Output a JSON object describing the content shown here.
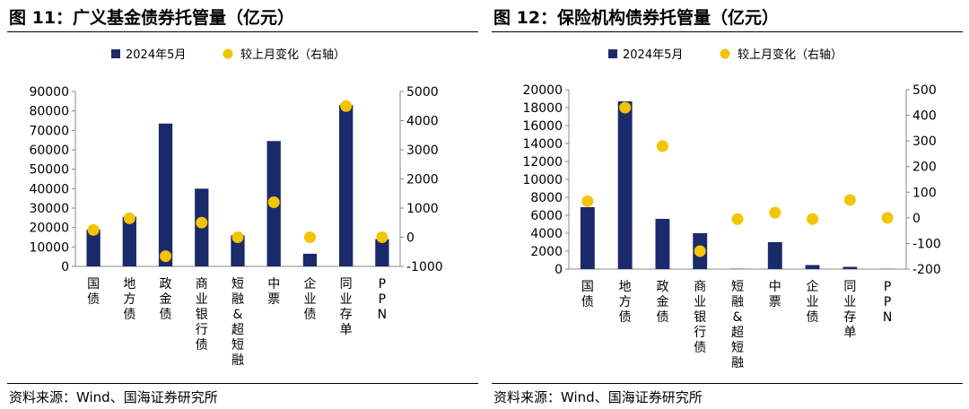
{
  "charts": [
    {
      "title": "图 11：广义基金债券托管量（亿元）",
      "source": "资料来源：Wind、国海证券研究所",
      "chart_data": {
        "type": "bar",
        "categories": [
          "国债",
          "地方债",
          "政金债",
          "商业银行债",
          "短融&超短融",
          "中票",
          "企业债",
          "同业存单",
          "PPN"
        ],
        "series": [
          {
            "name": "2024年5月",
            "type": "bar",
            "axis": "left",
            "color": "#1b2a6b",
            "values": [
              19000,
              25500,
              73500,
              40000,
              16000,
              64500,
              6500,
              83000,
              14000
            ]
          },
          {
            "name": "较上月变化（右轴）",
            "type": "scatter",
            "axis": "right",
            "color": "#f5c400",
            "values": [
              250,
              650,
              -650,
              500,
              0,
              1200,
              0,
              4500,
              0
            ]
          }
        ],
        "ylim_left": [
          0,
          90000
        ],
        "yticks_left": [
          0,
          10000,
          20000,
          30000,
          40000,
          50000,
          60000,
          70000,
          80000,
          90000
        ],
        "ylim_right": [
          -1000,
          5000
        ],
        "yticks_right": [
          -1000,
          0,
          1000,
          2000,
          3000,
          4000,
          5000
        ],
        "legend_position": "top",
        "grid": false
      }
    },
    {
      "title": "图 12：保险机构债券托管量（亿元）",
      "source": "资料来源：Wind、国海证券研究所",
      "chart_data": {
        "type": "bar",
        "categories": [
          "国债",
          "地方债",
          "政金债",
          "商业银行债",
          "短融&超短融",
          "中票",
          "企业债",
          "同业存单",
          "PPN"
        ],
        "series": [
          {
            "name": "2024年5月",
            "type": "bar",
            "axis": "left",
            "color": "#1b2a6b",
            "values": [
              6900,
              18700,
              5600,
              4000,
              30,
              3000,
              450,
              250,
              20
            ]
          },
          {
            "name": "较上月变化（右轴）",
            "type": "scatter",
            "axis": "right",
            "color": "#f5c400",
            "values": [
              65,
              430,
              280,
              -130,
              -5,
              20,
              -5,
              70,
              0
            ]
          }
        ],
        "ylim_left": [
          0,
          20000
        ],
        "yticks_left": [
          0,
          2000,
          4000,
          6000,
          8000,
          10000,
          12000,
          14000,
          16000,
          18000,
          20000
        ],
        "ylim_right": [
          -200,
          500
        ],
        "yticks_right": [
          -200,
          -100,
          0,
          100,
          200,
          300,
          400,
          500
        ],
        "legend_position": "top",
        "grid": false
      }
    }
  ]
}
